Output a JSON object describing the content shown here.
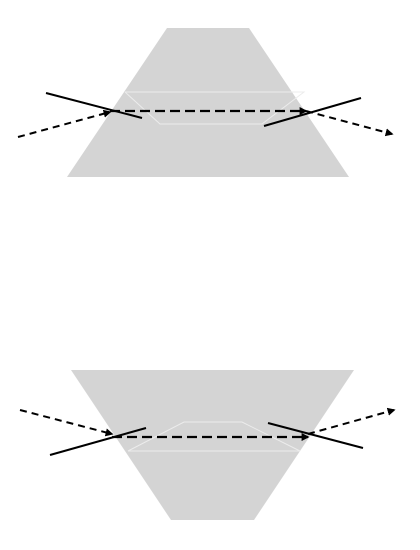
{
  "colors": {
    "prism_fill": "#d4d4d4",
    "prism_highlight": "#ececec",
    "ray": "#000000",
    "line": "#000000",
    "background": "#ffffff"
  },
  "diagrams": [
    {
      "orientation": "apex-up"
    },
    {
      "orientation": "apex-down"
    }
  ]
}
